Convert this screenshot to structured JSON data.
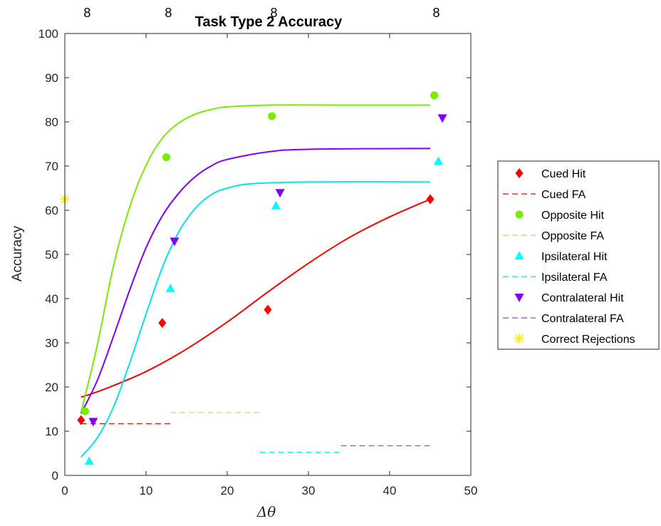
{
  "chart_data": {
    "type": "line",
    "title": "Task Type 2 Accuracy",
    "xlabel": "Δθ",
    "ylabel": "Accuracy",
    "xlim": [
      0,
      50
    ],
    "ylim": [
      0,
      100
    ],
    "xticks": [
      0,
      10,
      20,
      30,
      40,
      50
    ],
    "yticks": [
      0,
      10,
      20,
      30,
      40,
      50,
      60,
      70,
      80,
      90,
      100
    ],
    "grid": false,
    "legend_position": "outside-right",
    "top_counts": [
      {
        "x": 2.75,
        "label": "8"
      },
      {
        "x": 12.75,
        "label": "8"
      },
      {
        "x": 25.75,
        "label": "8"
      },
      {
        "x": 45.75,
        "label": "8"
      }
    ],
    "series": [
      {
        "name": "Cued Hit",
        "kind": "points",
        "marker": "diamond",
        "color": "#ff0000",
        "points": [
          [
            2,
            12.5
          ],
          [
            12,
            34.5
          ],
          [
            25,
            37.5
          ],
          [
            45,
            62.5
          ]
        ]
      },
      {
        "name": "Cued FA",
        "kind": "dashed",
        "color": "#ff0000",
        "points": [
          [
            2,
            11.7
          ],
          [
            13,
            11.7
          ]
        ]
      },
      {
        "name": "Opposite Hit",
        "kind": "points",
        "marker": "circle",
        "color": "#77ee00",
        "points": [
          [
            2.5,
            14.5
          ],
          [
            12.5,
            72
          ],
          [
            25.5,
            81.3
          ],
          [
            45.5,
            86
          ]
        ]
      },
      {
        "name": "Opposite FA",
        "kind": "dashed",
        "color": "#a8e860",
        "points": [
          [
            13,
            14.2
          ],
          [
            24,
            14.2
          ]
        ]
      },
      {
        "name": "Ipsilateral Hit",
        "kind": "points",
        "marker": "triangle-up",
        "color": "#00ffff",
        "points": [
          [
            3,
            3.2
          ],
          [
            13,
            42.3
          ],
          [
            26,
            61
          ],
          [
            46,
            71.1
          ]
        ]
      },
      {
        "name": "Ipsilateral FA",
        "kind": "dashed",
        "color": "#00e5ee",
        "points": [
          [
            24,
            5.2
          ],
          [
            34,
            5.2
          ]
        ]
      },
      {
        "name": "Contralateral Hit",
        "kind": "points",
        "marker": "triangle-down",
        "color": "#7f00ff",
        "points": [
          [
            3.5,
            12.2
          ],
          [
            13.5,
            53
          ],
          [
            26.5,
            64
          ],
          [
            46.5,
            80.9
          ]
        ]
      },
      {
        "name": "Contralateral FA",
        "kind": "dashed",
        "color": "#9a3cff",
        "points": [
          [
            34,
            6.7
          ],
          [
            45,
            6.7
          ]
        ]
      },
      {
        "name": "Correct Rejections",
        "kind": "points",
        "marker": "asterisk",
        "color": "#ffee00",
        "points": [
          [
            0,
            62.5
          ]
        ]
      }
    ],
    "fits": [
      {
        "color": "#ff0000",
        "points": [
          [
            2,
            17.7
          ],
          [
            5,
            19.6
          ],
          [
            10,
            23.5
          ],
          [
            15,
            28.6
          ],
          [
            20,
            34.7
          ],
          [
            25,
            41.5
          ],
          [
            30,
            48.0
          ],
          [
            35,
            53.8
          ],
          [
            40,
            58.5
          ],
          [
            45,
            62.5
          ]
        ]
      },
      {
        "color": "#77ee00",
        "points": [
          [
            2,
            14.3
          ],
          [
            4,
            29.5
          ],
          [
            6,
            47.5
          ],
          [
            8,
            60.8
          ],
          [
            10,
            70.2
          ],
          [
            12,
            76.3
          ],
          [
            14,
            79.7
          ],
          [
            16,
            81.7
          ],
          [
            18,
            82.8
          ],
          [
            20,
            83.4
          ],
          [
            25,
            83.8
          ],
          [
            35,
            83.8
          ],
          [
            45,
            83.8
          ]
        ]
      },
      {
        "color": "#00e5ee",
        "points": [
          [
            2,
            4.2
          ],
          [
            4,
            8.5
          ],
          [
            6,
            15.5
          ],
          [
            8,
            25.5
          ],
          [
            10,
            36.5
          ],
          [
            12,
            47.0
          ],
          [
            14,
            55.0
          ],
          [
            16,
            60.3
          ],
          [
            18,
            63.5
          ],
          [
            20,
            65.0
          ],
          [
            23,
            66.0
          ],
          [
            30,
            66.4
          ],
          [
            45,
            66.4
          ]
        ]
      },
      {
        "color": "#8000ff",
        "points": [
          [
            2,
            14.0
          ],
          [
            4,
            21.5
          ],
          [
            6,
            31.5
          ],
          [
            8,
            42.0
          ],
          [
            10,
            51.5
          ],
          [
            12,
            58.7
          ],
          [
            14,
            63.8
          ],
          [
            16,
            67.5
          ],
          [
            18,
            70.0
          ],
          [
            20,
            71.5
          ],
          [
            25,
            73.2
          ],
          [
            30,
            73.8
          ],
          [
            45,
            74.0
          ]
        ]
      }
    ]
  }
}
